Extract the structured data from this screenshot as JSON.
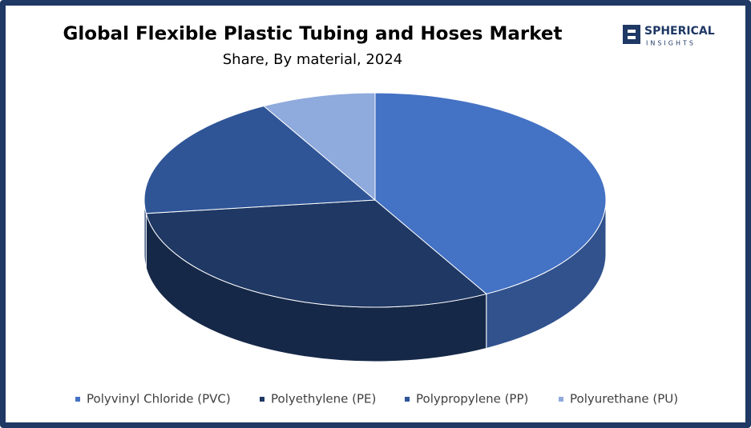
{
  "chart_data": {
    "type": "pie",
    "title": "Global Flexible Plastic Tubing and Hoses Market",
    "subtitle": "Share, By material, 2024",
    "categories": [
      "Polyvinyl Chloride (PVC)",
      "Polyethylene (PE)",
      "Polypropylene (PP)",
      "Polyurethane (PU)"
    ],
    "values": [
      42,
      31,
      19,
      8
    ],
    "colors": [
      "#4472c4",
      "#1f3864",
      "#2f5597",
      "#8faadc"
    ],
    "legend": "bottom"
  },
  "logo": {
    "name": "SPHERICAL",
    "tagline": "INSIGHTS"
  }
}
